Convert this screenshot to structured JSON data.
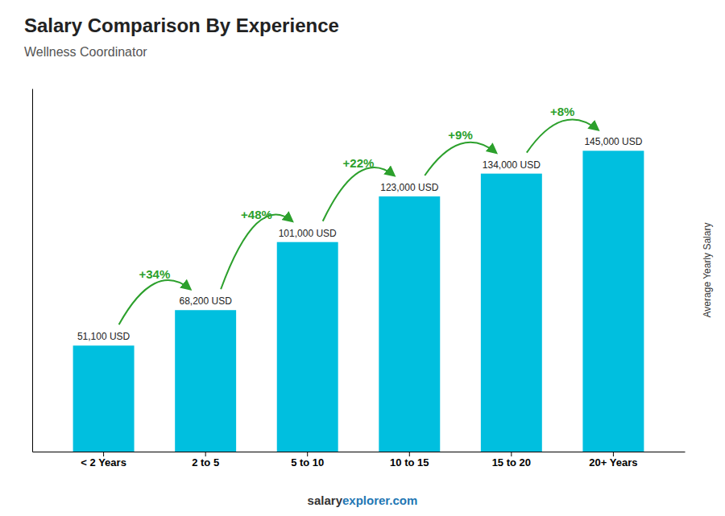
{
  "chart_data": {
    "type": "bar",
    "title": "Salary Comparison By Experience",
    "subtitle": "Wellness Coordinator",
    "ylabel": "Average Yearly Salary",
    "categories": [
      "< 2 Years",
      "2 to 5",
      "5 to 10",
      "10 to 15",
      "15 to 20",
      "20+ Years"
    ],
    "values": [
      51100,
      68200,
      101000,
      123000,
      134000,
      145000
    ],
    "value_labels": [
      "51,100 USD",
      "68,200 USD",
      "101,000 USD",
      "123,000 USD",
      "134,000 USD",
      "145,000 USD"
    ],
    "data_labels": true,
    "annotations": [
      "+34%",
      "+48%",
      "+22%",
      "+9%",
      "+8%"
    ],
    "footer": [
      "salary",
      "explorer.com"
    ],
    "color": "#00BFDF",
    "ylim": [
      0,
      175000
    ],
    "tick_labels": "x",
    "grid": false
  }
}
